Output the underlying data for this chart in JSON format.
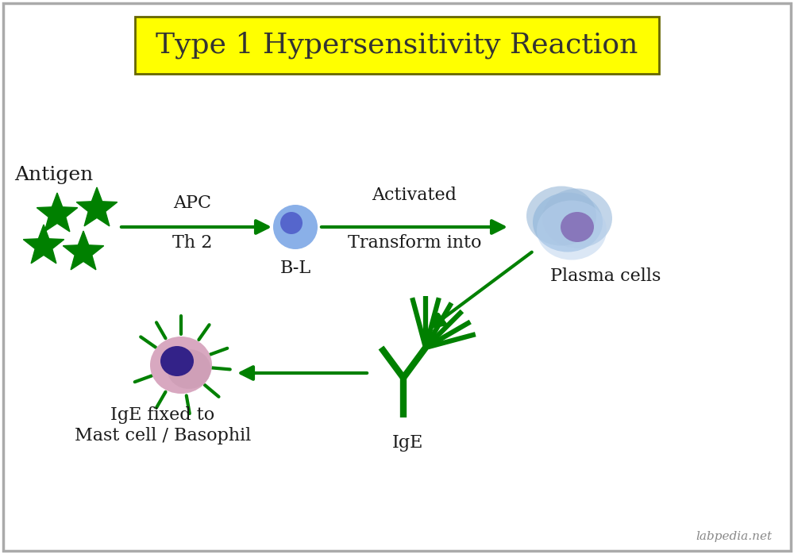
{
  "title": "Type 1 Hypersensitivity Reaction",
  "title_bg": "#ffff00",
  "title_fontsize": 26,
  "title_color": "#333333",
  "bg_color": "#ffffff",
  "arrow_color": "#008000",
  "text_color": "#1a1a1a",
  "star_color": "#008000",
  "label_antigen": "Antigen",
  "label_apc": "APC\nTh 2",
  "label_bl": "B-L",
  "label_activated": "Activated\nTransform into",
  "label_plasma": "Plasma cells",
  "label_ige": "IgE",
  "label_ige_fixed": "IgE fixed to\nMast cell / Basophil",
  "label_watermark": "labpedia.net",
  "font_size_labels": 18,
  "font_size_arrow": 16
}
